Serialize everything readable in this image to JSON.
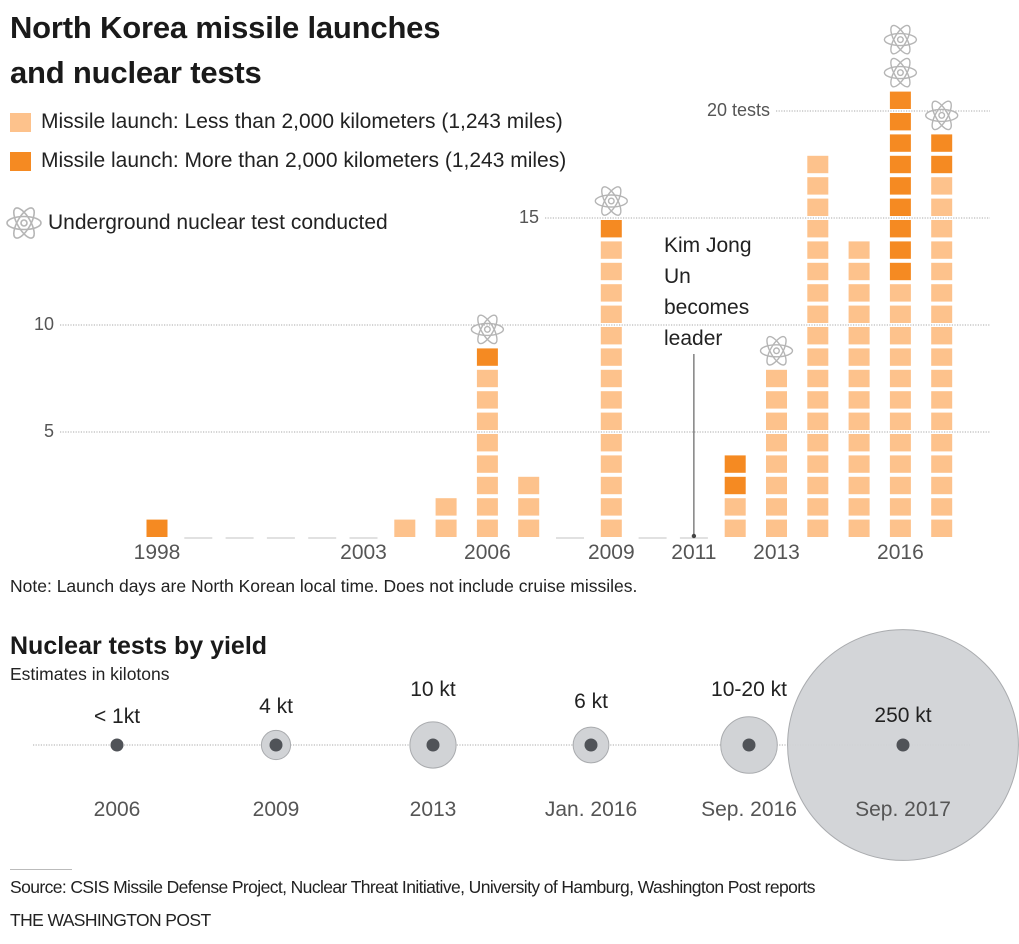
{
  "header": {
    "title_line1": "North Korea missile launches",
    "title_line2": "and nuclear tests"
  },
  "legend": {
    "short_range": "Missile launch: Less than 2,000 kilometers (1,243 miles)",
    "long_range": "Missile launch: More than 2,000 kilometers (1,243 miles)",
    "nuclear_test": "Underground nuclear test conducted",
    "nuclear_icon": "atom-icon"
  },
  "colors": {
    "short_range": "#FDC28C",
    "long_range": "#F58A22",
    "atom": "#b5b5b5",
    "gridline": "#aaaaaa",
    "bubble_fill": "#d1d3d6",
    "bubble_stroke": "#a9abae",
    "bubble_dot": "#505358"
  },
  "annotation": {
    "text": "Kim Jong Un becomes leader",
    "year": 2011
  },
  "note": "Note: Launch days are North Korean local time. Does not include cruise missiles.",
  "yield_section": {
    "title": "Nuclear tests by yield",
    "subtitle": "Estimates in kilotons"
  },
  "footer": {
    "source": "Source: CSIS Missile Defense Project, Nuclear Threat Initiative, University of Hamburg, Washington Post reports",
    "brand": "THE WASHINGTON POST"
  },
  "chart_data": [
    {
      "type": "bar",
      "title": "North Korea missile launches and nuclear tests",
      "stacked": true,
      "categories": [
        1998,
        1999,
        2000,
        2001,
        2002,
        2003,
        2004,
        2005,
        2006,
        2007,
        2008,
        2009,
        2010,
        2011,
        2012,
        2013,
        2014,
        2015,
        2016,
        2017
      ],
      "series": [
        {
          "name": "Missile launch: Less than 2,000 kilometers (1,243 miles)",
          "values": [
            0,
            0,
            0,
            0,
            0,
            0,
            1,
            2,
            8,
            3,
            0,
            14,
            0,
            0,
            2,
            8,
            18,
            14,
            12,
            17
          ]
        },
        {
          "name": "Missile launch: More than 2,000 kilometers (1,243 miles)",
          "values": [
            1,
            0,
            0,
            0,
            0,
            0,
            0,
            0,
            1,
            0,
            0,
            1,
            0,
            0,
            2,
            0,
            0,
            0,
            9,
            2
          ]
        }
      ],
      "nuclear_tests": {
        "2006": 1,
        "2009": 1,
        "2013": 1,
        "2016": 2,
        "2017": 1
      },
      "x_tick_labels": [
        "1998",
        "2003",
        "2006",
        "2009",
        "2011",
        "2013",
        "2016"
      ],
      "y_ticks": [
        {
          "value": 5,
          "label": "5"
        },
        {
          "value": 10,
          "label": "10"
        },
        {
          "value": 15,
          "label": "15"
        },
        {
          "value": 20,
          "label": "20 tests"
        }
      ],
      "ylim": [
        0,
        21
      ],
      "grid": true,
      "xlabel": "",
      "ylabel": ""
    },
    {
      "type": "scatter",
      "title": "Nuclear tests by yield",
      "subtitle": "Estimates in kilotons",
      "points": [
        {
          "date": "2006",
          "label": "< 1kt",
          "yield_kt": 0.7
        },
        {
          "date": "2009",
          "label": "4 kt",
          "yield_kt": 4
        },
        {
          "date": "2013",
          "label": "10 kt",
          "yield_kt": 10
        },
        {
          "date": "Jan. 2016",
          "label": "6 kt",
          "yield_kt": 6
        },
        {
          "date": "Sep. 2016",
          "label": "10-20 kt",
          "yield_kt": 15
        },
        {
          "date": "Sep. 2017",
          "label": "250 kt",
          "yield_kt": 250
        }
      ]
    }
  ]
}
